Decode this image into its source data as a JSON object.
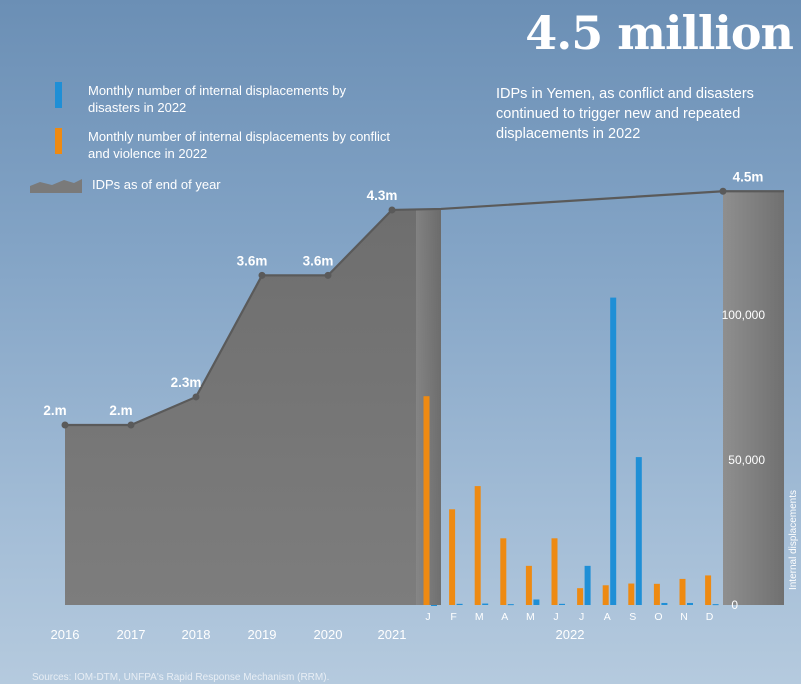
{
  "headline": "4.5 million",
  "subhead": "IDPs in Yemen, as conflict and disasters continued to trigger new and repeated displacements in 2022",
  "legend": {
    "disasters": "Monthly number of internal displacements by disasters in 2022",
    "conflict": "Monthly number of internal displacements by conflict and violence in 2022",
    "idps": "IDPs as of end of year"
  },
  "sources": "Sources: IOM-DTM, UNFPA's Rapid Response Mechanism (RRM).",
  "colors": {
    "disasters": "#1f8fd6",
    "conflict": "#ee8a12",
    "area": "#7a7a7a",
    "line": "#5a5a5a"
  },
  "chart_data": [
    {
      "type": "area",
      "series": [
        {
          "name": "IDPs as of end of year",
          "x": [
            "2016",
            "2017",
            "2018",
            "2019",
            "2020",
            "2021",
            "2022"
          ],
          "values": [
            2.0,
            2.0,
            2.3,
            3.6,
            3.6,
            4.3,
            4.5
          ],
          "labels": [
            "2.m",
            "2.m",
            "2.3m",
            "3.6m",
            "3.6m",
            "4.3m",
            "4.5m"
          ]
        }
      ]
    },
    {
      "type": "bar",
      "xlabel": "2022",
      "ylabel": "Internal displacements",
      "categories": [
        "J",
        "F",
        "M",
        "A",
        "M",
        "J",
        "J",
        "A",
        "S",
        "O",
        "N",
        "D"
      ],
      "ylim": [
        0,
        133000
      ],
      "yticks": [
        0,
        50000,
        100000
      ],
      "ytick_labels": [
        "0",
        "50,000",
        "100,000"
      ],
      "series": [
        {
          "name": "Monthly number of internal displacements by conflict and violence in 2022",
          "values": [
            72000,
            33000,
            41000,
            23000,
            13500,
            23000,
            5800,
            6800,
            7400,
            7300,
            9000,
            10200
          ]
        },
        {
          "name": "Monthly number of internal displacements by disasters in 2022",
          "values": [
            0,
            400,
            500,
            300,
            1900,
            400,
            13500,
            106000,
            51000,
            700,
            700,
            300
          ]
        }
      ]
    }
  ]
}
